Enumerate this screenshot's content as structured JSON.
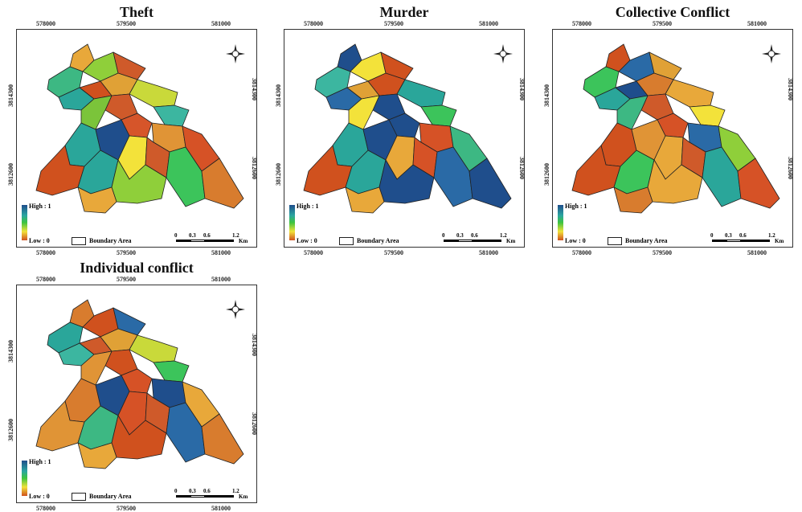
{
  "panels": [
    {
      "id": "theft",
      "title": "Theft",
      "offset": [
        10,
        4
      ],
      "fills": [
        "#e8a83a",
        "#3db883",
        "#8fcf3a",
        "#cf5a2a",
        "#2aa69a",
        "#d0501e",
        "#e0a136",
        "#c9d93a",
        "#cf5a2a",
        "#3cb6a0",
        "#7bc43a",
        "#d6552a",
        "#e09436",
        "#2aa69a",
        "#1f4e8c",
        "#d65226",
        "#f3e23a",
        "#cf5a2a",
        "#3cc45b",
        "#d87c2e",
        "#d0511e",
        "#2aa69a",
        "#8fcf3a",
        "#e8a83a"
      ]
    },
    {
      "id": "murder",
      "title": "Murder",
      "offset": [
        343,
        4
      ],
      "fills": [
        "#1f4e8c",
        "#3cb6a0",
        "#f3e23a",
        "#d0511e",
        "#2a6aa6",
        "#e0a136",
        "#d0511e",
        "#2aa69a",
        "#1f4e8c",
        "#3cc45b",
        "#f3e23a",
        "#1f4e8c",
        "#d65226",
        "#2aa69a",
        "#1f4e8c",
        "#3db883",
        "#e8a83a",
        "#d65226",
        "#2a6aa6",
        "#1f4e8c",
        "#d0511e",
        "#2aa69a",
        "#1f4e8c",
        "#e8a83a"
      ]
    },
    {
      "id": "collective",
      "title": "Collective Conflict",
      "offset": [
        677,
        4
      ],
      "fills": [
        "#d0511e",
        "#3cc45b",
        "#2a6aa6",
        "#e0a136",
        "#2aa69a",
        "#1f4e8c",
        "#d87c2e",
        "#e8a83a",
        "#cf5a2a",
        "#f3e23a",
        "#3db883",
        "#d65226",
        "#2a6aa6",
        "#d0511e",
        "#e09436",
        "#8fcf3a",
        "#e8a83a",
        "#cf5a2a",
        "#2aa69a",
        "#d65226",
        "#d0511e",
        "#3cc45b",
        "#e8a83a",
        "#d87c2e"
      ]
    },
    {
      "id": "individual",
      "title": "Individual conflict",
      "offset": [
        10,
        322
      ],
      "fills": [
        "#d87c2e",
        "#2aa69a",
        "#d0511e",
        "#2a6aa6",
        "#3cb6a0",
        "#cf5a2a",
        "#e0a136",
        "#c9d93a",
        "#d0511e",
        "#3cc45b",
        "#e09436",
        "#d65226",
        "#1f4e8c",
        "#d87c2e",
        "#1f4e8c",
        "#e8a83a",
        "#d65226",
        "#cf5a2a",
        "#2a6aa6",
        "#d87c2e",
        "#e09436",
        "#3db883",
        "#d0511e",
        "#e8a83a"
      ]
    }
  ],
  "axis": {
    "x_ticks": [
      "578000",
      "579500",
      "581000"
    ],
    "y_ticks": [
      "3814300",
      "3812600"
    ]
  },
  "legend": {
    "high": "High : 1",
    "low": "Low : 0",
    "boundary": "Boundary Area"
  },
  "scale": {
    "labels": [
      "0",
      "0.3",
      "0.6",
      "1.2"
    ],
    "unit": "Km"
  },
  "colors": {
    "high": "#1f4e8c",
    "mid_high": "#2aa69a",
    "mid": "#3ec43e",
    "mid_low": "#f1e23a",
    "low": "#d0511e"
  }
}
